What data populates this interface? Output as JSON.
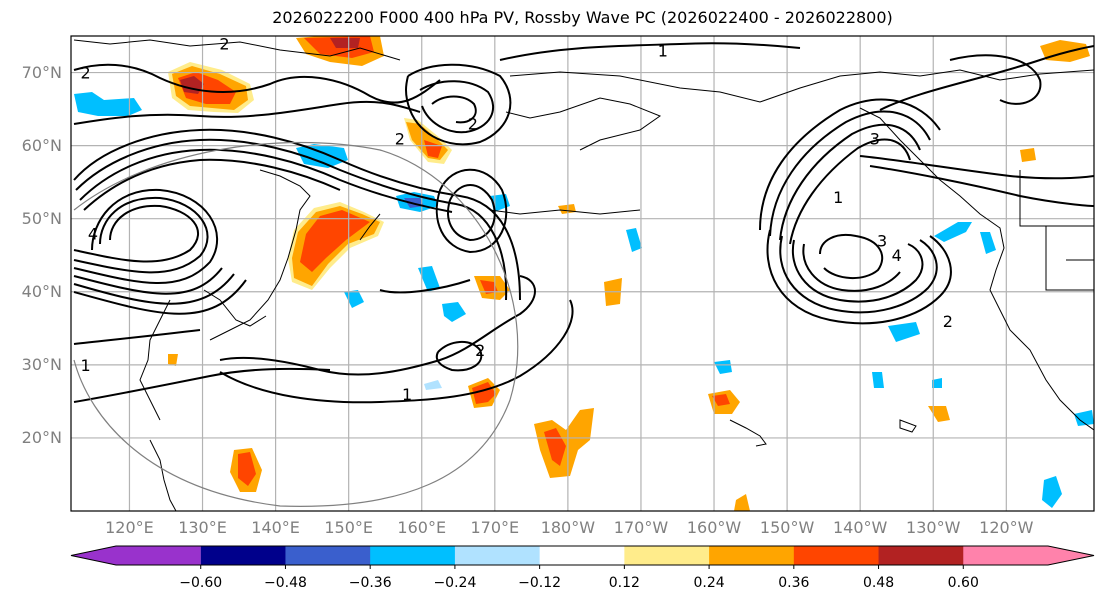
{
  "title": "2026022200 F000 400 hPa PV, Rossby Wave PC (2026022400 - 2026022800)",
  "map": {
    "projection": "PlateCarree",
    "extent": {
      "lon_min": 112,
      "lon_max": 252,
      "lat_min": 10,
      "lat_max": 75
    },
    "lat_ticks": [
      {
        "value": 70,
        "label": "70°N"
      },
      {
        "value": 60,
        "label": "60°N"
      },
      {
        "value": 50,
        "label": "50°N"
      },
      {
        "value": 40,
        "label": "40°N"
      },
      {
        "value": 30,
        "label": "30°N"
      },
      {
        "value": 20,
        "label": "20°N"
      }
    ],
    "lon_ticks": [
      {
        "value": 120,
        "label": "120°E"
      },
      {
        "value": 130,
        "label": "130°E"
      },
      {
        "value": 140,
        "label": "140°E"
      },
      {
        "value": 150,
        "label": "150°E"
      },
      {
        "value": 160,
        "label": "160°E"
      },
      {
        "value": 170,
        "label": "170°E"
      },
      {
        "value": 180,
        "label": "180°W"
      },
      {
        "value": 190,
        "label": "170°W"
      },
      {
        "value": 200,
        "label": "160°W"
      },
      {
        "value": 210,
        "label": "150°W"
      },
      {
        "value": 220,
        "label": "140°W"
      },
      {
        "value": 230,
        "label": "130°W"
      },
      {
        "value": 240,
        "label": "120°W"
      }
    ],
    "contour_labels": [
      {
        "text": "1",
        "lon": 193,
        "lat": 73
      },
      {
        "text": "1",
        "lon": 158,
        "lat": 26
      },
      {
        "text": "1",
        "lon": 114,
        "lat": 30
      },
      {
        "text": "1",
        "lon": 217,
        "lat": 53
      },
      {
        "text": "2",
        "lon": 133,
        "lat": 74
      },
      {
        "text": "2",
        "lon": 114,
        "lat": 70
      },
      {
        "text": "2",
        "lon": 157,
        "lat": 61
      },
      {
        "text": "2",
        "lon": 167,
        "lat": 63
      },
      {
        "text": "2",
        "lon": 168,
        "lat": 32
      },
      {
        "text": "2",
        "lon": 232,
        "lat": 36
      },
      {
        "text": "3",
        "lon": 222,
        "lat": 61
      },
      {
        "text": "3",
        "lon": 223,
        "lat": 47
      },
      {
        "text": "4",
        "lon": 115,
        "lat": 48
      },
      {
        "text": "4",
        "lon": 225,
        "lat": 45
      }
    ]
  },
  "colorbar": {
    "levels": [
      -0.6,
      -0.48,
      -0.36,
      -0.24,
      -0.12,
      0.12,
      0.24,
      0.36,
      0.48,
      0.6
    ],
    "tick_labels": [
      "−0.60",
      "−0.48",
      "−0.36",
      "−0.24",
      "−0.12",
      "0.12",
      "0.24",
      "0.36",
      "0.48",
      "0.60"
    ],
    "colors": [
      "#9932cc",
      "#00008b",
      "#3a5fcd",
      "#00bfff",
      "#b0e2ff",
      "#ffffff",
      "#ffec8b",
      "#ffa500",
      "#ff4500",
      "#b22222",
      "#ff82ab"
    ],
    "extend": "both"
  },
  "style": {
    "grid_color": "#b3b3b3",
    "contour_color": "#000000",
    "coast_color": "#000000",
    "label_color": "#808080"
  }
}
